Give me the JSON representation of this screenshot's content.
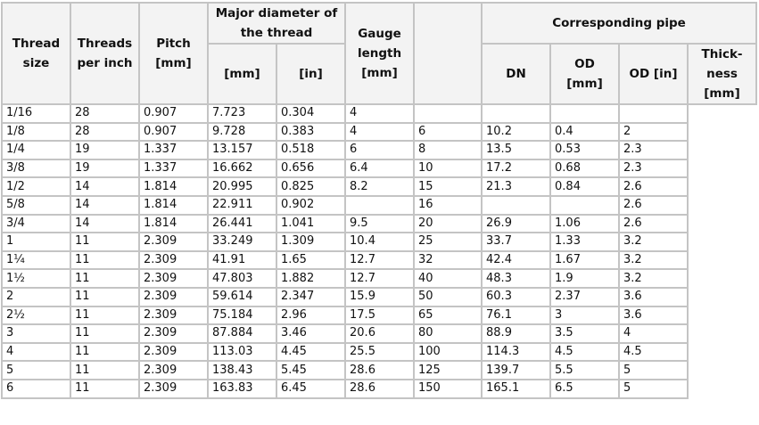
{
  "headers": {
    "thread_size": "Thread size",
    "threads_per_inch": "Threads per inch",
    "pitch": "Pitch [mm]",
    "major_diameter": "Major diameter of the thread",
    "major_mm": "[mm]",
    "major_in": "[in]",
    "gauge_length": "Gauge length [mm]",
    "corresponding_pipe": "Corresponding pipe",
    "dn": "DN",
    "od_mm": "OD [mm]",
    "od_in": "OD [in]",
    "thickness": "Thick-ness [mm]"
  },
  "rows": [
    [
      "1/16",
      "28",
      "0.907",
      "7.723",
      "0.304",
      "4",
      "",
      "",
      "",
      ""
    ],
    [
      "1/8",
      "28",
      "0.907",
      "9.728",
      "0.383",
      "4",
      "6",
      "10.2",
      "0.4",
      "2"
    ],
    [
      "1/4",
      "19",
      "1.337",
      "13.157",
      "0.518",
      "6",
      "8",
      "13.5",
      "0.53",
      "2.3"
    ],
    [
      "3/8",
      "19",
      "1.337",
      "16.662",
      "0.656",
      "6.4",
      "10",
      "17.2",
      "0.68",
      "2.3"
    ],
    [
      "1/2",
      "14",
      "1.814",
      "20.995",
      "0.825",
      "8.2",
      "15",
      "21.3",
      "0.84",
      "2.6"
    ],
    [
      "5/8",
      "14",
      "1.814",
      "22.911",
      "0.902",
      "",
      "16",
      "",
      "",
      "2.6"
    ],
    [
      "3/4",
      "14",
      "1.814",
      "26.441",
      "1.041",
      "9.5",
      "20",
      "26.9",
      "1.06",
      "2.6"
    ],
    [
      "1",
      "11",
      "2.309",
      "33.249",
      "1.309",
      "10.4",
      "25",
      "33.7",
      "1.33",
      "3.2"
    ],
    [
      "1¼",
      "11",
      "2.309",
      "41.91",
      "1.65",
      "12.7",
      "32",
      "42.4",
      "1.67",
      "3.2"
    ],
    [
      "1½",
      "11",
      "2.309",
      "47.803",
      "1.882",
      "12.7",
      "40",
      "48.3",
      "1.9",
      "3.2"
    ],
    [
      "2",
      "11",
      "2.309",
      "59.614",
      "2.347",
      "15.9",
      "50",
      "60.3",
      "2.37",
      "3.6"
    ],
    [
      "2½",
      "11",
      "2.309",
      "75.184",
      "2.96",
      "17.5",
      "65",
      "76.1",
      "3",
      "3.6"
    ],
    [
      "3",
      "11",
      "2.309",
      "87.884",
      "3.46",
      "20.6",
      "80",
      "88.9",
      "3.5",
      "4"
    ],
    [
      "4",
      "11",
      "2.309",
      "113.03",
      "4.45",
      "25.5",
      "100",
      "114.3",
      "4.5",
      "4.5"
    ],
    [
      "5",
      "11",
      "2.309",
      "138.43",
      "5.45",
      "28.6",
      "125",
      "139.7",
      "5.5",
      "5"
    ],
    [
      "6",
      "11",
      "2.309",
      "163.83",
      "6.45",
      "28.6",
      "150",
      "165.1",
      "6.5",
      "5"
    ]
  ]
}
